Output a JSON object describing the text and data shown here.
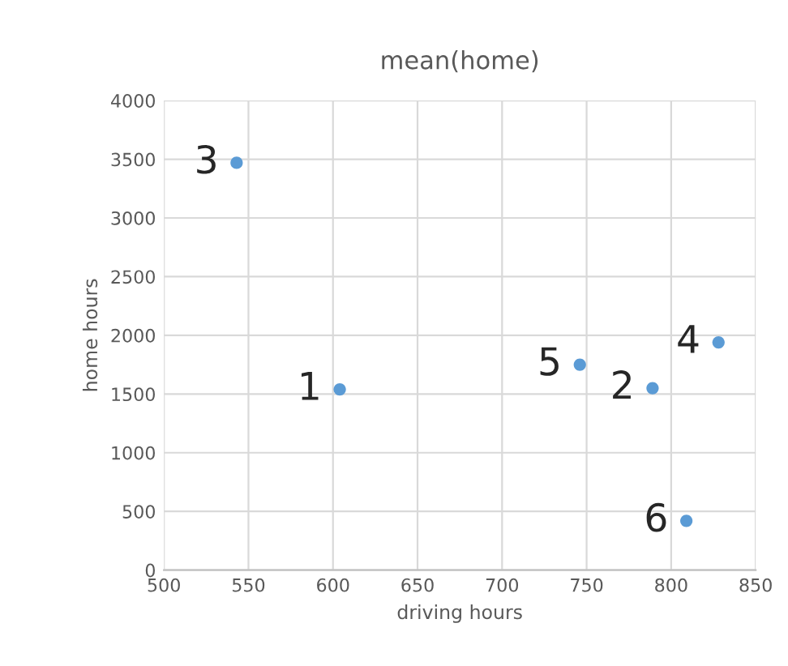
{
  "chart_data": {
    "type": "scatter",
    "title": "mean(home)",
    "xlabel": "driving hours",
    "ylabel": "home hours",
    "series": [
      {
        "color": "#5b9bd5",
        "x": [
          604,
          789,
          543,
          828,
          746,
          809
        ],
        "values": [
          1540,
          1550,
          3470,
          1940,
          1750,
          420
        ]
      }
    ],
    "annotations": [
      {
        "text": "1",
        "x": 604,
        "y": 1540
      },
      {
        "text": "2",
        "x": 789,
        "y": 1550
      },
      {
        "text": "3",
        "x": 543,
        "y": 3470
      },
      {
        "text": "4",
        "x": 828,
        "y": 1940
      },
      {
        "text": "5",
        "x": 746,
        "y": 1750
      },
      {
        "text": "6",
        "x": 809,
        "y": 420
      }
    ],
    "xlim": [
      500,
      850
    ],
    "xticks": [
      500,
      550,
      600,
      650,
      700,
      750,
      800,
      850
    ],
    "ylim": [
      0,
      4000
    ],
    "yticks": [
      0,
      500,
      1000,
      1500,
      2000,
      2500,
      3000,
      3500,
      4000
    ],
    "grid": true,
    "marker": "circle",
    "legend": false
  }
}
